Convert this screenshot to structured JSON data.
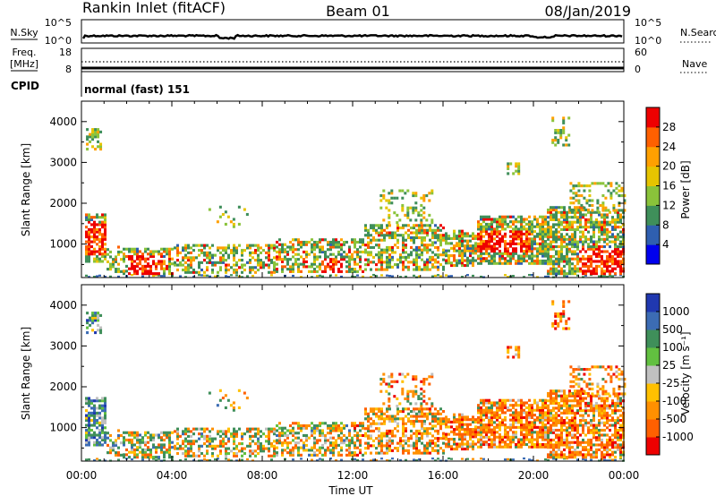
{
  "header": {
    "station": "Rankin Inlet (fitACF)",
    "beam": "Beam 01",
    "date": "08/Jan/2019"
  },
  "nsky_panel": {
    "left_label": "N.Sky",
    "right_label": "N.Search",
    "left_ticks": [
      "10^5",
      "10^0"
    ],
    "right_ticks": [
      "10^5",
      "10^0"
    ]
  },
  "freq_panel": {
    "left_label_1": "Freq.",
    "left_label_2": "[MHz]",
    "left_ticks": [
      "18",
      "8"
    ],
    "right_label": "Nave",
    "right_ticks": [
      "60",
      "0"
    ]
  },
  "cpid_panel": {
    "label": "CPID",
    "mode": "normal (fast) 151"
  },
  "chart_data": [
    {
      "type": "heatmap",
      "name": "power",
      "ylabel": "Slant Range [km]",
      "xlabel": "",
      "yticks": [
        "4000",
        "3000",
        "2000",
        "1000"
      ],
      "ylim": [
        180,
        4500
      ],
      "colorbar_label": "Power [dB]",
      "colorbar_ticks": [
        "28",
        "24",
        "20",
        "16",
        "12",
        "8",
        "4"
      ],
      "colorbar_colors": [
        "#0000ee",
        "#2f5fb0",
        "#3f8f5a",
        "#8ac33a",
        "#e6c400",
        "#ffa000",
        "#ff6000",
        "#ee0000"
      ]
    },
    {
      "type": "heatmap",
      "name": "velocity",
      "ylabel": "Slant Range [km]",
      "xlabel": "Time UT",
      "yticks": [
        "4000",
        "3000",
        "2000",
        "1000"
      ],
      "ylim": [
        180,
        4500
      ],
      "xticks": [
        "00:00",
        "04:00",
        "08:00",
        "12:00",
        "16:00",
        "20:00",
        "00:00"
      ],
      "colorbar_label": "Velocity [m s⁻¹]",
      "colorbar_ticks": [
        "1000",
        "500",
        "100",
        "25",
        "-25",
        "-100",
        "-500",
        "-1000"
      ],
      "colorbar_colors": [
        "#2038b0",
        "#3c6cb4",
        "#3f8f5a",
        "#62c040",
        "#c0c0c0",
        "#ffc000",
        "#ff9000",
        "#ff6000",
        "#ee0000"
      ]
    }
  ]
}
